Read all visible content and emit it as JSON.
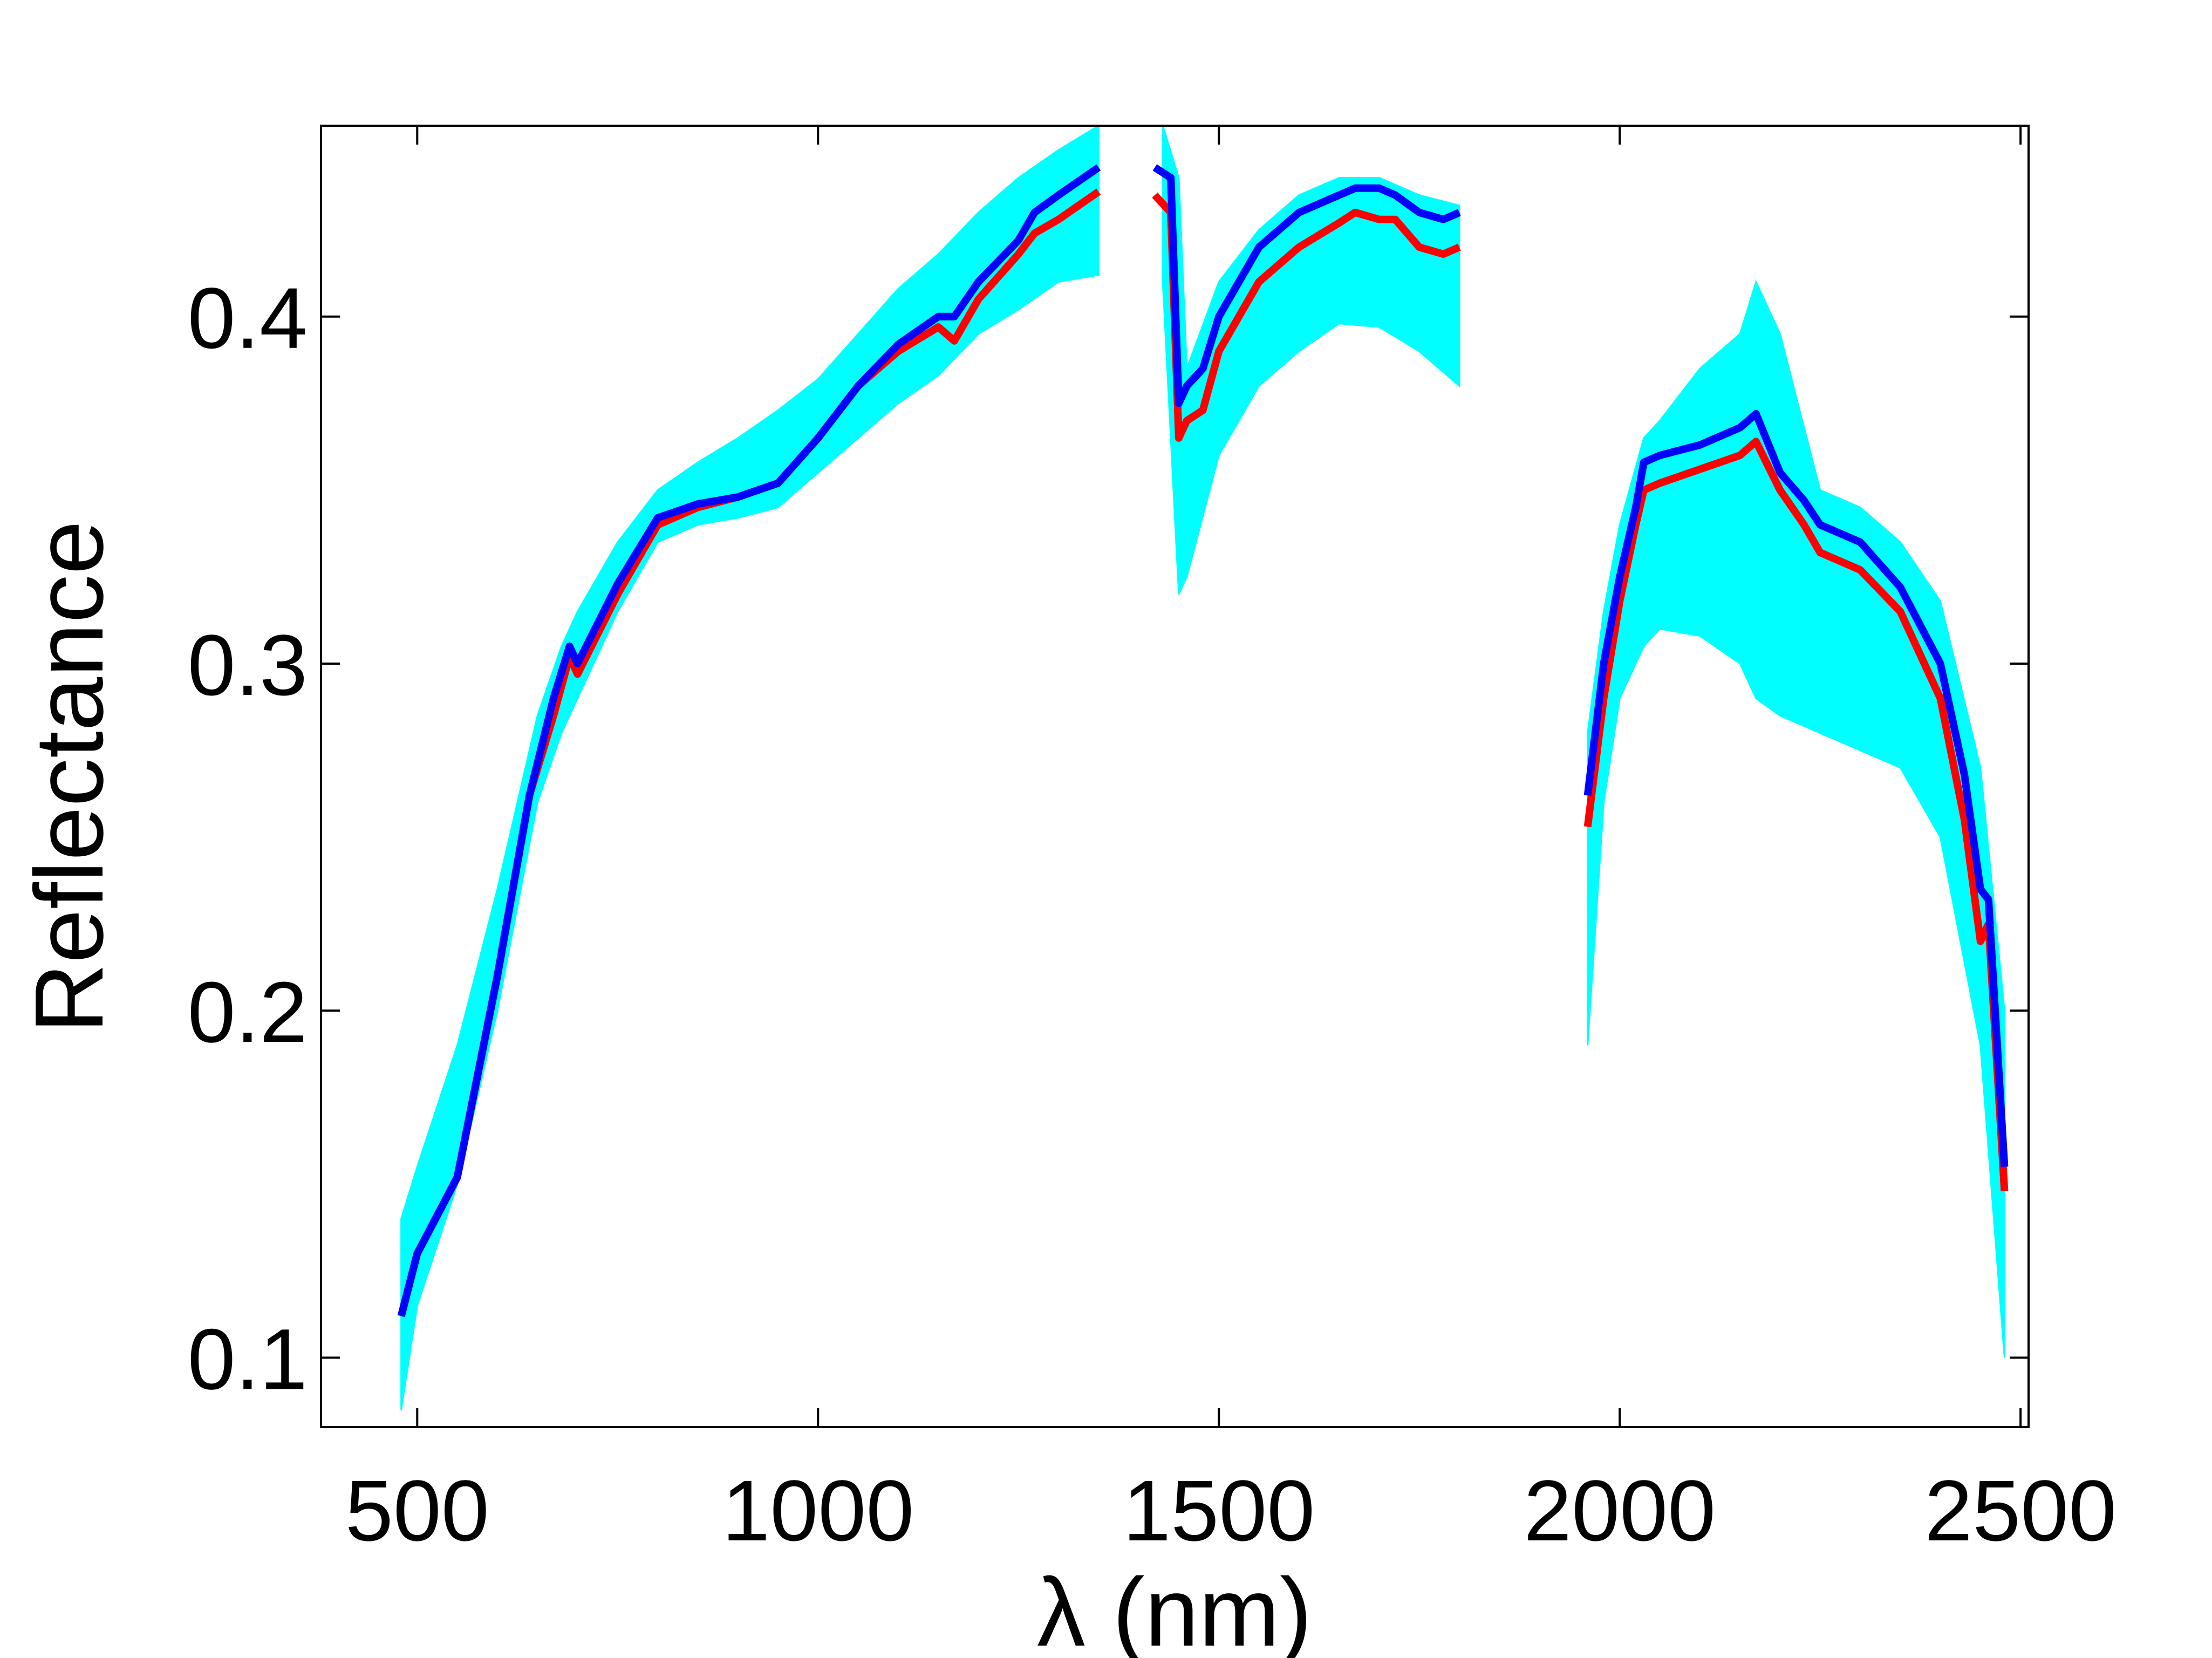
{
  "chart_data": {
    "type": "line",
    "title": "",
    "xlabel": "λ (nm)",
    "ylabel": "Reflectance",
    "xlim": [
      380,
      2510
    ],
    "ylim": [
      0.08,
      0.455
    ],
    "xticks": [
      500,
      1000,
      1500,
      2000,
      2500
    ],
    "yticks": [
      0.1,
      0.2,
      0.3,
      0.4
    ],
    "xtick_labels": [
      "500",
      "1000",
      "1500",
      "2000",
      "2500"
    ],
    "ytick_labels": [
      "0.1",
      "0.2",
      "0.3",
      "0.4"
    ],
    "grid": false,
    "legend": "none",
    "colors": {
      "band": "#00ffff",
      "red_series": "#ff0000",
      "blue_series": "#0000ff"
    },
    "series": [
      {
        "kind": "band",
        "segments": [
          {
            "x": [
              480,
              500,
              550,
              600,
              650,
              680,
              700,
              750,
              800,
              850,
              900,
              950,
              1000,
              1050,
              1100,
              1150,
              1200,
              1250,
              1300,
              1350
            ],
            "upper": [
              0.14,
              0.155,
              0.19,
              0.235,
              0.285,
              0.305,
              0.315,
              0.335,
              0.35,
              0.358,
              0.365,
              0.373,
              0.382,
              0.395,
              0.408,
              0.418,
              0.43,
              0.44,
              0.448,
              0.455
            ],
            "lower": [
              0.085,
              0.115,
              0.15,
              0.2,
              0.26,
              0.28,
              0.29,
              0.315,
              0.335,
              0.34,
              0.342,
              0.345,
              0.355,
              0.365,
              0.375,
              0.383,
              0.395,
              0.402,
              0.41,
              0.412
            ]
          },
          {
            "x": [
              1430,
              1450,
              1460,
              1500,
              1550,
              1600,
              1650,
              1700,
              1750,
              1800
            ],
            "upper": [
              0.455,
              0.44,
              0.385,
              0.41,
              0.425,
              0.435,
              0.44,
              0.44,
              0.435,
              0.432
            ],
            "lower": [
              0.41,
              0.32,
              0.325,
              0.36,
              0.38,
              0.39,
              0.398,
              0.397,
              0.39,
              0.38
            ]
          },
          {
            "x": [
              1960,
              1980,
              2000,
              2030,
              2050,
              2100,
              2150,
              2170,
              2200,
              2250,
              2300,
              2350,
              2400,
              2450,
              2480
            ],
            "upper": [
              0.28,
              0.315,
              0.34,
              0.365,
              0.37,
              0.385,
              0.395,
              0.41,
              0.395,
              0.35,
              0.345,
              0.335,
              0.318,
              0.27,
              0.2
            ],
            "lower": [
              0.19,
              0.26,
              0.29,
              0.305,
              0.31,
              0.308,
              0.3,
              0.29,
              0.285,
              0.28,
              0.275,
              0.27,
              0.25,
              0.19,
              0.1
            ]
          }
        ]
      },
      {
        "kind": "line",
        "color": "red",
        "segments": [
          {
            "x": [
              480,
              500,
              550,
              600,
              640,
              670,
              690,
              700,
              750,
              800,
              850,
              900,
              950,
              1000,
              1050,
              1100,
              1150,
              1170,
              1200,
              1250,
              1270,
              1300,
              1350
            ],
            "y": [
              0.112,
              0.13,
              0.152,
              0.21,
              0.262,
              0.285,
              0.302,
              0.297,
              0.32,
              0.34,
              0.345,
              0.348,
              0.352,
              0.365,
              0.38,
              0.39,
              0.397,
              0.393,
              0.405,
              0.418,
              0.424,
              0.428,
              0.436
            ]
          },
          {
            "x": [
              1420,
              1440,
              1450,
              1460,
              1480,
              1500,
              1550,
              1600,
              1650,
              1670,
              1700,
              1720,
              1750,
              1780,
              1800
            ],
            "y": [
              0.435,
              0.43,
              0.365,
              0.37,
              0.373,
              0.39,
              0.41,
              0.42,
              0.427,
              0.43,
              0.428,
              0.428,
              0.42,
              0.418,
              0.42
            ]
          },
          {
            "x": [
              1960,
              1980,
              2000,
              2020,
              2030,
              2050,
              2100,
              2150,
              2170,
              2200,
              2230,
              2250,
              2300,
              2350,
              2400,
              2430,
              2450,
              2460,
              2480
            ],
            "y": [
              0.253,
              0.29,
              0.318,
              0.34,
              0.35,
              0.352,
              0.356,
              0.36,
              0.364,
              0.35,
              0.34,
              0.332,
              0.327,
              0.315,
              0.29,
              0.255,
              0.22,
              0.225,
              0.148
            ]
          }
        ]
      },
      {
        "kind": "line",
        "color": "blue",
        "segments": [
          {
            "x": [
              480,
              500,
              550,
              600,
              640,
              670,
              690,
              700,
              750,
              800,
              850,
              900,
              950,
              1000,
              1050,
              1100,
              1150,
              1170,
              1200,
              1250,
              1270,
              1300,
              1350
            ],
            "y": [
              0.112,
              0.13,
              0.152,
              0.21,
              0.262,
              0.29,
              0.305,
              0.3,
              0.323,
              0.342,
              0.346,
              0.348,
              0.352,
              0.365,
              0.38,
              0.392,
              0.4,
              0.4,
              0.41,
              0.422,
              0.43,
              0.435,
              0.443
            ]
          },
          {
            "x": [
              1420,
              1440,
              1450,
              1460,
              1480,
              1500,
              1550,
              1600,
              1650,
              1670,
              1700,
              1720,
              1750,
              1780,
              1800
            ],
            "y": [
              0.443,
              0.44,
              0.375,
              0.38,
              0.385,
              0.4,
              0.42,
              0.43,
              0.435,
              0.437,
              0.437,
              0.435,
              0.43,
              0.428,
              0.43
            ]
          },
          {
            "x": [
              1960,
              1980,
              2000,
              2020,
              2030,
              2050,
              2100,
              2150,
              2170,
              2200,
              2230,
              2250,
              2300,
              2350,
              2400,
              2430,
              2450,
              2460,
              2480
            ],
            "y": [
              0.262,
              0.3,
              0.325,
              0.345,
              0.358,
              0.36,
              0.363,
              0.368,
              0.372,
              0.355,
              0.347,
              0.34,
              0.335,
              0.322,
              0.3,
              0.268,
              0.235,
              0.232,
              0.155
            ]
          }
        ]
      }
    ]
  }
}
